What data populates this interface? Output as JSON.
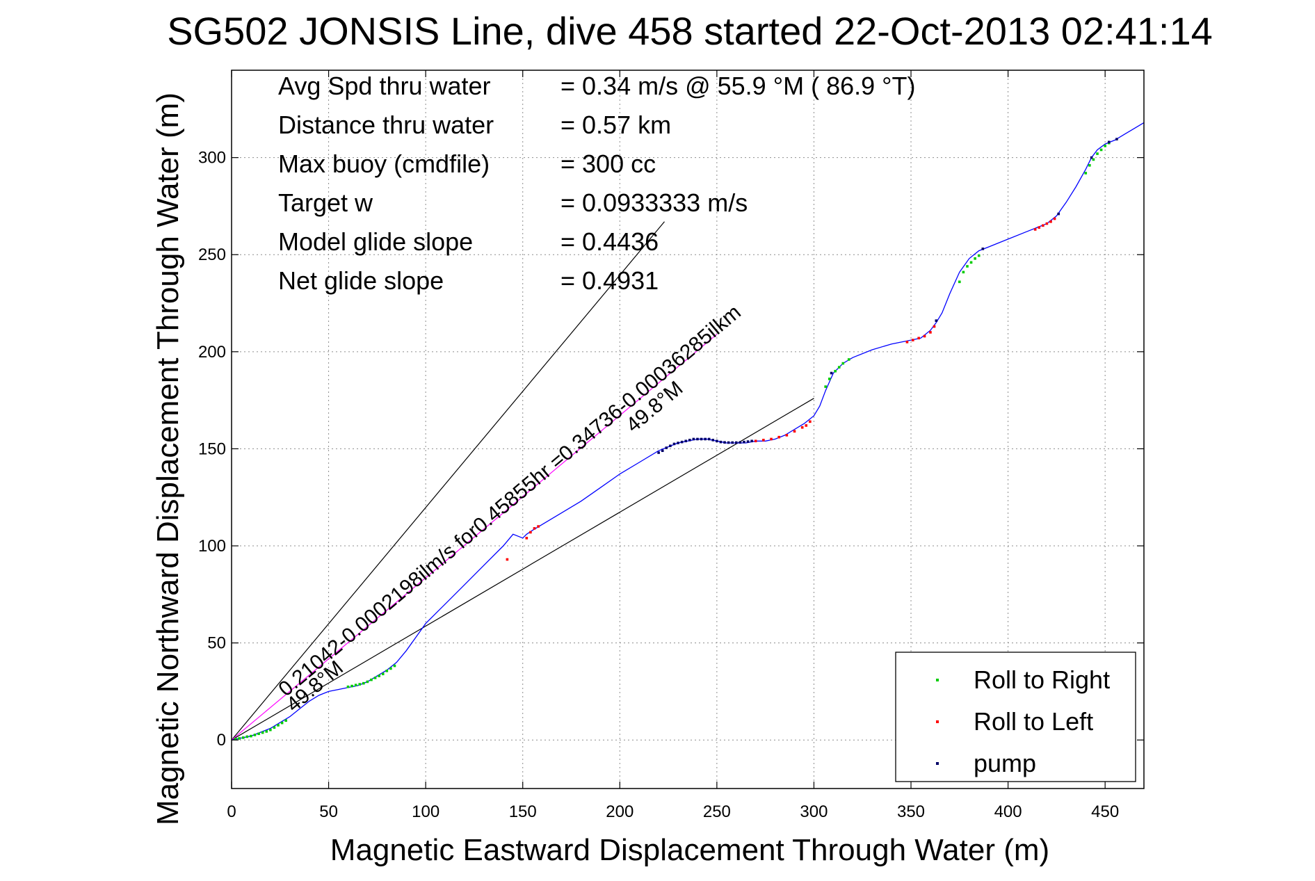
{
  "chart_data": {
    "type": "line",
    "title": "SG502 JONSIS Line, dive 458 started 22-Oct-2013 02:41:14",
    "xlabel": "Magnetic Eastward Displacement Through Water (m)",
    "ylabel": "Magnetic Northward Displacement Through Water (m)",
    "xlim": [
      0,
      470
    ],
    "ylim": [
      -25,
      345
    ],
    "xticks": [
      0,
      50,
      100,
      150,
      200,
      250,
      300,
      350,
      400,
      450
    ],
    "yticks": [
      0,
      50,
      100,
      150,
      200,
      250,
      300
    ],
    "grid": true,
    "legend_position": "bottom-right",
    "stats": [
      {
        "label": "Avg Spd thru water",
        "value": "=  0.34 m/s @  55.9 °M ( 86.9 °T)"
      },
      {
        "label": "Distance thru water",
        "value": "=  0.57 km"
      },
      {
        "label": "Max buoy (cmdfile)",
        "value": "= 300 cc"
      },
      {
        "label": "Target w",
        "value": "= 0.0933333 m/s"
      },
      {
        "label": "Model glide slope",
        "value": "= 0.4436"
      },
      {
        "label": "Net glide slope",
        "value": "= 0.4931"
      }
    ],
    "annotations": [
      {
        "text": "0.21042-0.0002198ilm/s for0.45855hr =0.34736-0.00036285ilkm",
        "x": 28,
        "y": 22
      },
      {
        "text": "49.8°M",
        "x": 32,
        "y": 14
      },
      {
        "text": "49.8°M",
        "x": 207,
        "y": 158
      }
    ],
    "reference_lines": [
      {
        "name": "upper bound",
        "x": [
          0,
          223
        ],
        "y": [
          0,
          267
        ],
        "color": "#000000"
      },
      {
        "name": "lower bound",
        "x": [
          0,
          300
        ],
        "y": [
          0,
          176
        ],
        "color": "#000000"
      },
      {
        "name": "current",
        "x": [
          0,
          250
        ],
        "y": [
          0,
          209
        ],
        "color": "#ff00ff"
      }
    ],
    "series": [
      {
        "name": "track",
        "color": "#0000ff",
        "x": [
          0,
          5,
          10,
          15,
          20,
          25,
          30,
          35,
          40,
          45,
          50,
          55,
          60,
          65,
          70,
          75,
          80,
          85,
          90,
          95,
          100,
          110,
          120,
          130,
          140,
          145,
          150,
          152,
          155,
          160,
          165,
          170,
          180,
          190,
          200,
          210,
          220,
          230,
          240,
          245,
          250,
          255,
          260,
          265,
          270,
          275,
          280,
          285,
          290,
          295,
          300,
          303,
          306,
          310,
          315,
          320,
          330,
          340,
          350,
          355,
          360,
          363,
          366,
          370,
          375,
          380,
          385,
          390,
          395,
          400,
          410,
          415,
          420,
          425,
          430,
          435,
          440,
          443,
          446,
          450,
          455,
          460,
          465,
          470
        ],
        "y": [
          0,
          1,
          2,
          4,
          6,
          9,
          12,
          16,
          20,
          23,
          25,
          26,
          27,
          28,
          30,
          33,
          36,
          40,
          46,
          53,
          60,
          70,
          80,
          90,
          100,
          106,
          104,
          106,
          108,
          111,
          114,
          117,
          123,
          130,
          137,
          143,
          149,
          153,
          155,
          155,
          154,
          153,
          153,
          153,
          154,
          154,
          155,
          157,
          160,
          163,
          167,
          172,
          180,
          189,
          194,
          197,
          201,
          204,
          206,
          207,
          211,
          215,
          220,
          230,
          241,
          248,
          252,
          254,
          256,
          258,
          262,
          264,
          266,
          270,
          277,
          285,
          294,
          300,
          304,
          307,
          309,
          312,
          315,
          318
        ]
      }
    ],
    "markers": [
      {
        "name": "Roll to Right",
        "color": "#00cc00",
        "x": [
          2,
          4,
          6,
          8,
          10,
          12,
          14,
          16,
          18,
          20,
          22,
          24,
          26,
          28,
          60,
          62,
          64,
          66,
          68,
          70,
          72,
          74,
          76,
          78,
          80,
          82,
          84,
          306,
          308,
          311,
          313,
          315,
          318,
          375,
          377,
          379,
          381,
          383,
          385,
          440,
          442,
          444,
          446,
          448,
          450,
          452
        ],
        "y": [
          0.5,
          0.8,
          1.2,
          1.7,
          2.0,
          2.6,
          3.2,
          3.8,
          4.4,
          5.2,
          6.4,
          7.6,
          8.8,
          10,
          27.4,
          27.8,
          28.3,
          28.7,
          29.2,
          30,
          31,
          32,
          33,
          34,
          35.6,
          36.8,
          38.2,
          182,
          186,
          190,
          192,
          194,
          196,
          236,
          241,
          244,
          246,
          248,
          249.5,
          292,
          296,
          299,
          302,
          304,
          306,
          307.5
        ]
      },
      {
        "name": "Roll to Left",
        "color": "#ff0000",
        "x": [
          142,
          152,
          154,
          156,
          158,
          270,
          274,
          278,
          282,
          286,
          290,
          294,
          296,
          298,
          348,
          351,
          354,
          357,
          360,
          362,
          414,
          416,
          418,
          420,
          422,
          424
        ],
        "y": [
          93,
          104,
          107,
          109,
          110,
          154,
          154.5,
          155,
          156,
          157,
          159,
          161,
          162,
          164,
          205,
          206,
          207,
          208,
          210,
          213,
          263,
          264,
          265,
          266,
          267,
          268.5
        ]
      },
      {
        "name": "pump",
        "color": "#000066",
        "x": [
          220,
          222,
          224,
          226,
          228,
          230,
          232,
          234,
          236,
          238,
          240,
          242,
          244,
          246,
          248,
          250,
          252,
          254,
          256,
          258,
          260,
          262,
          264,
          266,
          268,
          309,
          363,
          387,
          426,
          443,
          452,
          456
        ],
        "y": [
          148,
          149,
          150.5,
          151.5,
          152.5,
          153,
          153.5,
          154,
          154.5,
          155,
          155,
          155,
          155,
          155,
          154.5,
          154,
          153.5,
          153.3,
          153.2,
          153.2,
          153.2,
          153.3,
          153.5,
          153.7,
          154,
          189,
          216,
          253,
          271,
          300,
          308,
          309.5
        ]
      }
    ]
  }
}
